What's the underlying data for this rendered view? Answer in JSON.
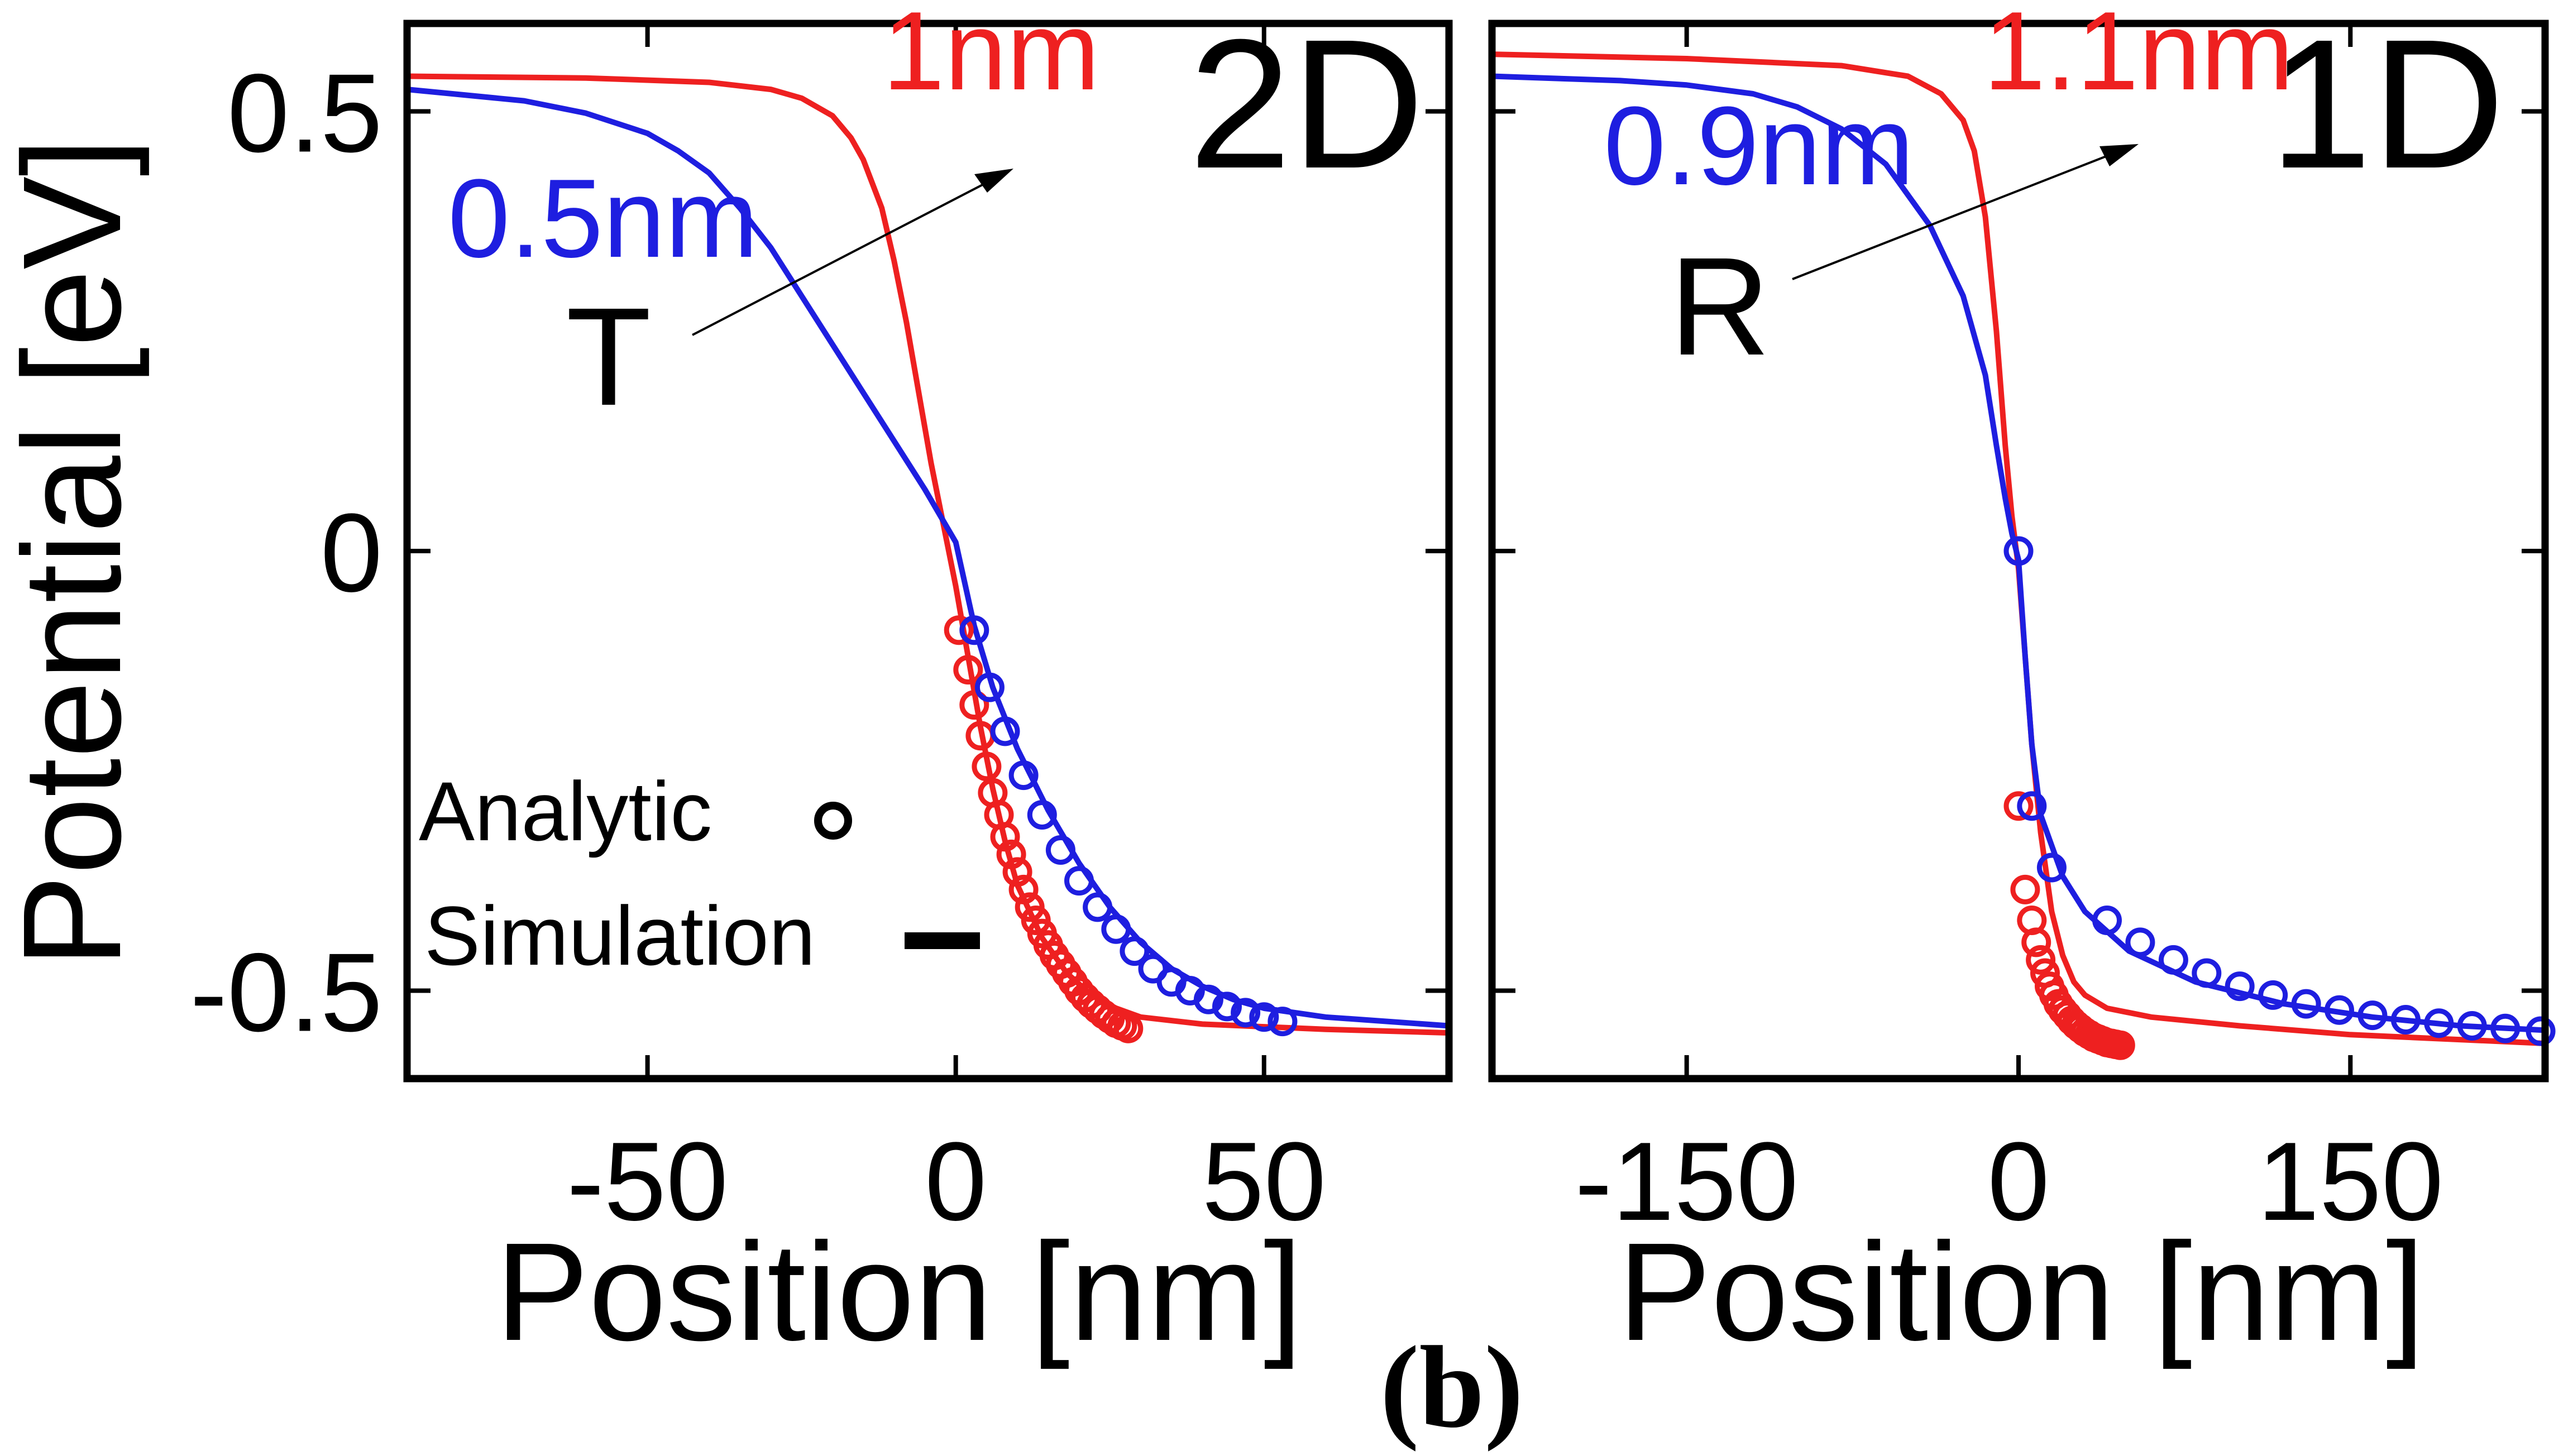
{
  "figure": {
    "caption": "(b)"
  },
  "y_axis": {
    "label": "Potential [eV]",
    "range": [
      -0.6,
      0.6
    ],
    "ticks": [
      -0.5,
      0,
      0.5
    ],
    "tick_labels": [
      "-0.5",
      "0",
      "0.5"
    ]
  },
  "legend": {
    "analytic_label": "Analytic",
    "simulation_label": "Simulation"
  },
  "colors": {
    "red": "#ee2020",
    "blue": "#1e1ee0",
    "axis": "#000000"
  },
  "chart_data": [
    {
      "type": "line",
      "title": "2D",
      "xlabel": "Position [nm]",
      "ylabel": "Potential [eV]",
      "xlim": [
        -89,
        80
      ],
      "ylim": [
        -0.6,
        0.6
      ],
      "xticks": [
        -50,
        0,
        50
      ],
      "xtick_labels": [
        "-50",
        "0",
        "50"
      ],
      "annotation": {
        "label": "T",
        "direction": "increasing T"
      },
      "series": [
        {
          "name": "1nm",
          "color": "red",
          "kind": "simulation",
          "x": [
            -89,
            -60,
            -40,
            -30,
            -25,
            -20,
            -17,
            -15,
            -12,
            -10,
            -8,
            -6,
            -4,
            -2,
            0,
            2,
            4,
            6,
            8,
            10,
            14,
            18,
            22,
            26,
            30,
            40,
            60,
            80
          ],
          "y": [
            0.54,
            0.538,
            0.533,
            0.525,
            0.515,
            0.495,
            0.47,
            0.445,
            0.39,
            0.33,
            0.26,
            0.18,
            0.1,
            0.03,
            -0.04,
            -0.12,
            -0.2,
            -0.27,
            -0.33,
            -0.38,
            -0.44,
            -0.48,
            -0.505,
            -0.52,
            -0.53,
            -0.538,
            -0.544,
            -0.548
          ]
        },
        {
          "name": "0.5nm",
          "color": "blue",
          "kind": "simulation",
          "x": [
            -89,
            -70,
            -60,
            -50,
            -45,
            -40,
            -35,
            -30,
            -25,
            -20,
            -15,
            -10,
            -5,
            0,
            3,
            6,
            10,
            15,
            20,
            25,
            30,
            35,
            40,
            45,
            50,
            60,
            70,
            80
          ],
          "y": [
            0.525,
            0.512,
            0.498,
            0.475,
            0.455,
            0.43,
            0.39,
            0.345,
            0.29,
            0.235,
            0.18,
            0.125,
            0.07,
            0.01,
            -0.085,
            -0.155,
            -0.225,
            -0.295,
            -0.355,
            -0.405,
            -0.445,
            -0.475,
            -0.495,
            -0.51,
            -0.52,
            -0.53,
            -0.535,
            -0.54
          ]
        },
        {
          "name": "1nm analytic",
          "color": "red",
          "kind": "analytic",
          "x": [
            0.5,
            2,
            3,
            4,
            5,
            6,
            7,
            8,
            9,
            10,
            11,
            12,
            13,
            14,
            15,
            16,
            17,
            18,
            19,
            20,
            21,
            22,
            23,
            24,
            25,
            26,
            27,
            28
          ],
          "y": [
            -0.09,
            -0.135,
            -0.175,
            -0.21,
            -0.245,
            -0.275,
            -0.3,
            -0.325,
            -0.345,
            -0.365,
            -0.385,
            -0.405,
            -0.42,
            -0.435,
            -0.448,
            -0.46,
            -0.47,
            -0.48,
            -0.49,
            -0.5,
            -0.508,
            -0.515,
            -0.521,
            -0.527,
            -0.532,
            -0.537,
            -0.54,
            -0.543
          ]
        },
        {
          "name": "0.5nm analytic",
          "color": "blue",
          "kind": "analytic",
          "x": [
            3,
            5.5,
            8,
            11,
            14,
            17,
            20,
            23,
            26,
            29,
            32,
            35,
            38,
            41,
            44,
            47,
            50,
            53
          ],
          "y": [
            -0.09,
            -0.155,
            -0.205,
            -0.255,
            -0.3,
            -0.34,
            -0.375,
            -0.405,
            -0.43,
            -0.455,
            -0.475,
            -0.49,
            -0.5,
            -0.51,
            -0.518,
            -0.525,
            -0.53,
            -0.535
          ]
        }
      ]
    },
    {
      "type": "line",
      "title": "1D",
      "xlabel": "Position [nm]",
      "ylabel": "Potential [eV]",
      "xlim": [
        -238,
        238
      ],
      "ylim": [
        -0.6,
        0.6
      ],
      "xticks": [
        -150,
        0,
        150
      ],
      "xtick_labels": [
        "-150",
        "0",
        "150"
      ],
      "annotation": {
        "label": "R",
        "direction": "increasing R"
      },
      "series": [
        {
          "name": "1.1nm",
          "color": "red",
          "kind": "simulation",
          "x": [
            -238,
            -150,
            -80,
            -50,
            -35,
            -25,
            -20,
            -15,
            -10,
            -6,
            -3,
            0,
            3,
            6,
            10,
            15,
            20,
            25,
            30,
            40,
            60,
            100,
            150,
            238
          ],
          "y": [
            0.565,
            0.56,
            0.552,
            0.54,
            0.52,
            0.49,
            0.455,
            0.38,
            0.25,
            0.12,
            0.04,
            -0.02,
            -0.12,
            -0.22,
            -0.32,
            -0.41,
            -0.46,
            -0.49,
            -0.505,
            -0.52,
            -0.53,
            -0.54,
            -0.55,
            -0.56
          ]
        },
        {
          "name": "0.9nm",
          "color": "blue",
          "kind": "simulation",
          "x": [
            -238,
            -180,
            -150,
            -120,
            -100,
            -80,
            -60,
            -40,
            -25,
            -15,
            -10,
            -6,
            -3,
            0,
            3,
            6,
            10,
            20,
            30,
            50,
            80,
            120,
            160,
            200,
            238
          ],
          "y": [
            0.54,
            0.535,
            0.53,
            0.52,
            0.505,
            0.48,
            0.44,
            0.37,
            0.29,
            0.2,
            0.12,
            0.06,
            0.02,
            -0.01,
            -0.12,
            -0.22,
            -0.3,
            -0.37,
            -0.41,
            -0.455,
            -0.49,
            -0.515,
            -0.53,
            -0.54,
            -0.545
          ]
        },
        {
          "name": "1.1nm analytic",
          "color": "red",
          "kind": "analytic",
          "x": [
            0,
            3,
            6,
            8,
            10,
            12,
            14,
            16,
            18,
            20,
            22,
            24,
            26,
            28,
            30,
            32,
            34,
            36,
            38,
            40,
            42,
            44,
            46
          ],
          "y": [
            -0.29,
            -0.385,
            -0.42,
            -0.445,
            -0.465,
            -0.48,
            -0.495,
            -0.505,
            -0.515,
            -0.522,
            -0.528,
            -0.534,
            -0.539,
            -0.543,
            -0.547,
            -0.55,
            -0.553,
            -0.555,
            -0.557,
            -0.559,
            -0.56,
            -0.561,
            -0.562
          ]
        },
        {
          "name": "0.9nm analytic",
          "color": "blue",
          "kind": "analytic",
          "x": [
            0,
            6,
            15,
            40,
            55,
            70,
            85,
            100,
            115,
            130,
            145,
            160,
            175,
            190,
            205,
            220,
            236
          ],
          "y": [
            0.0,
            -0.29,
            -0.36,
            -0.42,
            -0.445,
            -0.465,
            -0.48,
            -0.495,
            -0.505,
            -0.515,
            -0.522,
            -0.528,
            -0.533,
            -0.537,
            -0.54,
            -0.543,
            -0.546
          ]
        }
      ]
    }
  ]
}
